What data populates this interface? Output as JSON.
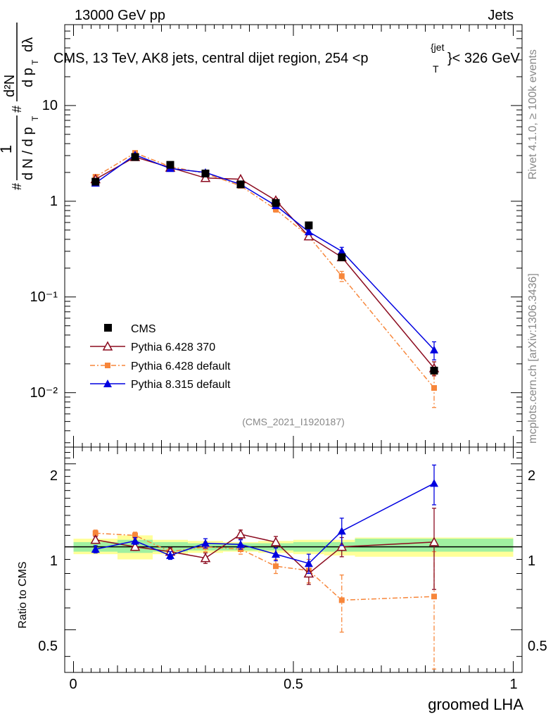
{
  "header": {
    "left": "13000 GeV pp",
    "right": "Jets",
    "title_main": "CMS, 13 TeV, AK8 jets, central dijet region, 254 <p",
    "title_sup": "{jet",
    "title_sub": "T",
    "title_end": "}< 326 GeV"
  },
  "side_labels": {
    "rivet": "Rivet 4.1.0, ≥ 100k events",
    "mcplots": "mcplots.cern.ch [arXiv:1306.3436]"
  },
  "watermark": "(CMS_2021_I1920187)",
  "axes": {
    "xlabel": "groomed LHA",
    "ylabel_ratio": "Ratio to CMS",
    "ylabel_top_a": "#",
    "ylabel_top_b": "1",
    "ylabel_top_c": "d N / d p",
    "ylabel_top_d": "T",
    "ylabel_top_e": "#",
    "ylabel_top_f": "d²N",
    "ylabel_top_g": "d p",
    "ylabel_top_h": "T",
    "ylabel_top_i": "dλ",
    "x_ticks": [
      "0",
      "0.5",
      "1"
    ],
    "top_y_ticks": [
      "10",
      "1",
      "10⁻¹",
      "10⁻²"
    ],
    "ratio_y_ticks": [
      "2",
      "1",
      "0.5"
    ]
  },
  "legend": {
    "cms": "CMS",
    "p6_370": "Pythia 6.428 370",
    "p6_def": "Pythia 6.428 default",
    "p8_def": "Pythia 8.315 default"
  },
  "colors": {
    "cms": "#000000",
    "p6_370": "#8b0b1f",
    "p6_def": "#f7863a",
    "p8_def": "#0000e0",
    "band_inner": "#a0f0a0",
    "band_outer": "#ffff99"
  },
  "chart_data": [
    {
      "type": "scatter",
      "title": "CMS, 13 TeV, AK8 jets, central dijet region, 254 < pT jet < 326 GeV",
      "xlabel": "groomed LHA",
      "ylabel": "1/(dN/dpT) d2N/(dpT dlambda)",
      "yscale": "log",
      "xlim": [
        -0.02,
        1.02
      ],
      "ylim": [
        0.0027,
        70
      ],
      "x": [
        0.05,
        0.14,
        0.22,
        0.3,
        0.38,
        0.46,
        0.535,
        0.61,
        0.82
      ],
      "series": [
        {
          "name": "CMS",
          "values": [
            1.6,
            2.9,
            2.4,
            1.95,
            1.5,
            0.96,
            0.56,
            0.26,
            0.017
          ]
        },
        {
          "name": "Pythia 6.428 370",
          "values": [
            1.7,
            2.9,
            2.25,
            1.75,
            1.7,
            1.02,
            0.43,
            0.26,
            0.018
          ],
          "errors": [
            0.05,
            0.1,
            0.08,
            0.07,
            0.07,
            0.05,
            0.03,
            0.02,
            0.003
          ]
        },
        {
          "name": "Pythia 6.428 default",
          "values": [
            1.8,
            3.2,
            2.3,
            1.95,
            1.45,
            0.82,
            0.43,
            0.165,
            0.0112
          ],
          "errors": [
            0.05,
            0.1,
            0.08,
            0.07,
            0.07,
            0.05,
            0.03,
            0.02,
            0.0042
          ]
        },
        {
          "name": "Pythia 8.315 default",
          "values": [
            1.55,
            3.05,
            2.2,
            2.0,
            1.5,
            0.9,
            0.48,
            0.3,
            0.028
          ],
          "errors": [
            0.05,
            0.1,
            0.08,
            0.07,
            0.07,
            0.05,
            0.03,
            0.03,
            0.006
          ]
        }
      ]
    },
    {
      "type": "scatter",
      "title": "Ratio to CMS",
      "xlabel": "groomed LHA",
      "ylabel": "Ratio to CMS",
      "xlim": [
        -0.02,
        1.02
      ],
      "ylim": [
        0.35,
        2.3
      ],
      "reference": 1.0,
      "x": [
        0.05,
        0.14,
        0.22,
        0.3,
        0.38,
        0.46,
        0.535,
        0.61,
        0.82
      ],
      "bin_edges": [
        0.0,
        0.1,
        0.18,
        0.26,
        0.34,
        0.42,
        0.5,
        0.57,
        0.64,
        1.0
      ],
      "band_stat": [
        [
          0.96,
          1.04
        ],
        [
          0.95,
          1.06
        ],
        [
          0.96,
          1.04
        ],
        [
          0.97,
          1.03
        ],
        [
          0.97,
          1.03
        ],
        [
          0.97,
          1.03
        ],
        [
          0.96,
          1.04
        ],
        [
          0.96,
          1.04
        ],
        [
          0.96,
          1.07
        ]
      ],
      "band_total": [
        [
          0.94,
          1.07
        ],
        [
          0.9,
          1.1
        ],
        [
          0.94,
          1.06
        ],
        [
          0.95,
          1.05
        ],
        [
          0.96,
          1.04
        ],
        [
          0.95,
          1.05
        ],
        [
          0.94,
          1.06
        ],
        [
          0.93,
          1.06
        ],
        [
          0.92,
          1.08
        ]
      ],
      "series": [
        {
          "name": "Pythia 6.428 370",
          "values": [
            1.06,
            1.0,
            0.96,
            0.91,
            1.11,
            1.04,
            0.8,
            1.0,
            1.04
          ],
          "errors": [
            0.03,
            0.03,
            0.03,
            0.04,
            0.04,
            0.05,
            0.07,
            0.08,
            0.34
          ]
        },
        {
          "name": "Pythia 6.428 default",
          "values": [
            1.12,
            1.1,
            0.96,
            1.0,
            0.98,
            0.85,
            0.82,
            0.64,
            0.66
          ],
          "errors": [
            0.03,
            0.03,
            0.03,
            0.04,
            0.04,
            0.05,
            0.08,
            0.15,
            0.3
          ]
        },
        {
          "name": "Pythia 8.315 default",
          "values": [
            0.98,
            1.05,
            0.93,
            1.03,
            1.02,
            0.94,
            0.87,
            1.14,
            1.7
          ],
          "errors": [
            0.03,
            0.03,
            0.03,
            0.04,
            0.04,
            0.05,
            0.07,
            0.13,
            0.28
          ]
        }
      ]
    }
  ]
}
